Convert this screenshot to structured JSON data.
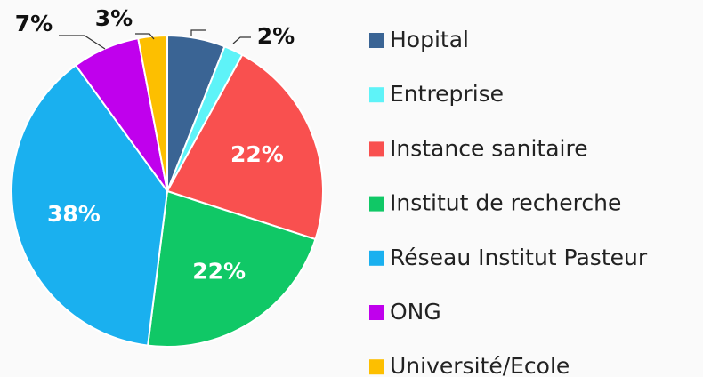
{
  "chart_data": {
    "type": "pie",
    "categories": [
      "Hopital",
      "Entreprise",
      "Instance sanitaire",
      "Institut de recherche",
      "Réseau Institut Pasteur",
      "ONG",
      "Université/Ecole"
    ],
    "values": [
      6,
      2,
      22,
      22,
      38,
      7,
      3
    ],
    "value_labels": [
      null,
      "2%",
      "22%",
      "22%",
      "38%",
      "7%",
      "3%"
    ],
    "colors": [
      "#3a6494",
      "#5ef3f8",
      "#f9504f",
      "#10c866",
      "#1ab0ef",
      "#c000ed",
      "#fdbf00"
    ]
  }
}
